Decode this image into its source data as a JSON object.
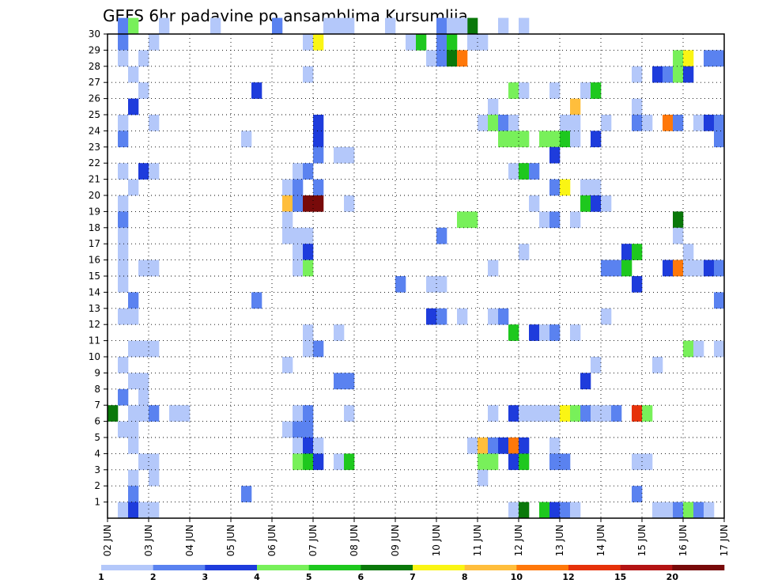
{
  "chart_data": {
    "type": "heatmap",
    "title": "GEFS 6hr padavine po ansamblima Kursumlija",
    "xlabel": "",
    "ylabel": "",
    "x_ticks": [
      "02 JUN",
      "03 JUN",
      "04 JUN",
      "05 JUN",
      "06 JUN",
      "07 JUN",
      "08 JUN",
      "09 JUN",
      "10 JUN",
      "11 JUN",
      "12 JUN",
      "13 JUN",
      "14 JUN",
      "15 JUN",
      "16 JUN",
      "17 JUN"
    ],
    "x_range_steps": [
      0,
      60
    ],
    "x_step_hours": 6,
    "y_ticks": [
      1,
      2,
      3,
      4,
      5,
      6,
      7,
      8,
      9,
      10,
      11,
      12,
      13,
      14,
      15,
      16,
      17,
      18,
      19,
      20,
      21,
      22,
      23,
      24,
      25,
      26,
      27,
      28,
      29,
      30
    ],
    "y_range": [
      0,
      30
    ],
    "grid": true,
    "colorbar": {
      "labels": [
        "1",
        "2",
        "3",
        "4",
        "5",
        "6",
        "7",
        "8",
        "10",
        "12",
        "15",
        "20"
      ],
      "colors": [
        "#b4c8fa",
        "#5a82f0",
        "#1e3cdc",
        "#78f05a",
        "#1ec81e",
        "#0a780a",
        "#faf514",
        "#ffbe3c",
        "#ff780a",
        "#e6320a",
        "#b41414",
        "#780a0a"
      ]
    },
    "cells": [
      [
        5,
        30,
        1
      ],
      [
        22,
        30,
        1
      ],
      [
        23,
        30,
        1
      ],
      [
        16,
        30,
        2
      ],
      [
        1,
        30,
        2
      ],
      [
        32,
        30,
        2
      ],
      [
        33,
        30,
        1
      ],
      [
        10,
        30,
        1
      ],
      [
        21,
        30,
        1
      ],
      [
        35,
        30,
        6
      ],
      [
        38,
        30,
        1
      ],
      [
        40,
        30,
        1
      ],
      [
        34,
        30,
        1
      ],
      [
        27,
        30,
        1
      ],
      [
        2,
        30,
        4
      ],
      [
        1,
        29,
        2
      ],
      [
        4,
        29,
        1
      ],
      [
        19,
        29,
        1
      ],
      [
        20,
        29,
        7
      ],
      [
        29,
        29,
        1
      ],
      [
        30,
        29,
        5
      ],
      [
        32,
        29,
        2
      ],
      [
        33,
        29,
        5
      ],
      [
        35,
        29,
        1
      ],
      [
        36,
        29,
        1
      ],
      [
        1,
        28,
        1
      ],
      [
        3,
        28,
        1
      ],
      [
        31,
        28,
        1
      ],
      [
        32,
        28,
        2
      ],
      [
        33,
        28,
        6
      ],
      [
        34,
        28,
        9
      ],
      [
        55,
        28,
        4
      ],
      [
        56,
        28,
        7
      ],
      [
        58,
        28,
        2
      ],
      [
        59,
        28,
        2
      ],
      [
        2,
        27,
        1
      ],
      [
        19,
        27,
        1
      ],
      [
        51,
        27,
        1
      ],
      [
        53,
        27,
        3
      ],
      [
        54,
        27,
        2
      ],
      [
        55,
        27,
        4
      ],
      [
        56,
        27,
        3
      ],
      [
        3,
        26,
        1
      ],
      [
        14,
        26,
        3
      ],
      [
        39,
        26,
        4
      ],
      [
        40,
        26,
        1
      ],
      [
        43,
        26,
        1
      ],
      [
        46,
        26,
        1
      ],
      [
        47,
        26,
        5
      ],
      [
        2,
        25,
        3
      ],
      [
        37,
        25,
        1
      ],
      [
        45,
        25,
        8
      ],
      [
        51,
        25,
        1
      ],
      [
        1,
        24,
        1
      ],
      [
        4,
        24,
        1
      ],
      [
        20,
        24,
        3
      ],
      [
        36,
        24,
        1
      ],
      [
        37,
        24,
        4
      ],
      [
        38,
        24,
        2
      ],
      [
        39,
        24,
        1
      ],
      [
        44,
        24,
        1
      ],
      [
        45,
        24,
        1
      ],
      [
        48,
        24,
        1
      ],
      [
        51,
        24,
        2
      ],
      [
        52,
        24,
        1
      ],
      [
        54,
        24,
        9
      ],
      [
        55,
        24,
        2
      ],
      [
        57,
        24,
        1
      ],
      [
        58,
        24,
        3
      ],
      [
        59,
        24,
        2
      ],
      [
        1,
        23,
        2
      ],
      [
        13,
        23,
        1
      ],
      [
        20,
        23,
        3
      ],
      [
        38,
        23,
        4
      ],
      [
        39,
        23,
        4
      ],
      [
        40,
        23,
        4
      ],
      [
        42,
        23,
        4
      ],
      [
        43,
        23,
        4
      ],
      [
        44,
        23,
        5
      ],
      [
        45,
        23,
        1
      ],
      [
        47,
        23,
        3
      ],
      [
        59,
        23,
        2
      ],
      [
        20,
        22,
        2
      ],
      [
        22,
        22,
        1
      ],
      [
        23,
        22,
        1
      ],
      [
        43,
        22,
        3
      ],
      [
        1,
        21,
        1
      ],
      [
        3,
        21,
        3
      ],
      [
        4,
        21,
        1
      ],
      [
        18,
        21,
        1
      ],
      [
        19,
        21,
        2
      ],
      [
        39,
        21,
        1
      ],
      [
        40,
        21,
        5
      ],
      [
        41,
        21,
        2
      ],
      [
        2,
        20,
        1
      ],
      [
        17,
        20,
        1
      ],
      [
        18,
        20,
        2
      ],
      [
        20,
        20,
        2
      ],
      [
        43,
        20,
        2
      ],
      [
        44,
        20,
        7
      ],
      [
        46,
        20,
        1
      ],
      [
        47,
        20,
        1
      ],
      [
        1,
        19,
        1
      ],
      [
        17,
        19,
        8
      ],
      [
        18,
        19,
        2
      ],
      [
        19,
        19,
        12
      ],
      [
        20,
        19,
        12
      ],
      [
        23,
        19,
        1
      ],
      [
        41,
        19,
        1
      ],
      [
        46,
        19,
        5
      ],
      [
        47,
        19,
        3
      ],
      [
        48,
        19,
        1
      ],
      [
        1,
        18,
        2
      ],
      [
        17,
        18,
        1
      ],
      [
        34,
        18,
        4
      ],
      [
        35,
        18,
        4
      ],
      [
        42,
        18,
        1
      ],
      [
        43,
        18,
        2
      ],
      [
        45,
        18,
        1
      ],
      [
        55,
        18,
        6
      ],
      [
        1,
        17,
        1
      ],
      [
        17,
        17,
        1
      ],
      [
        18,
        17,
        1
      ],
      [
        19,
        17,
        1
      ],
      [
        32,
        17,
        2
      ],
      [
        55,
        17,
        1
      ],
      [
        1,
        16,
        1
      ],
      [
        18,
        16,
        1
      ],
      [
        19,
        16,
        3
      ],
      [
        40,
        16,
        1
      ],
      [
        50,
        16,
        3
      ],
      [
        51,
        16,
        5
      ],
      [
        56,
        16,
        1
      ],
      [
        1,
        15,
        1
      ],
      [
        3,
        15,
        1
      ],
      [
        4,
        15,
        1
      ],
      [
        18,
        15,
        1
      ],
      [
        19,
        15,
        4
      ],
      [
        37,
        15,
        1
      ],
      [
        48,
        15,
        2
      ],
      [
        49,
        15,
        2
      ],
      [
        50,
        15,
        5
      ],
      [
        54,
        15,
        3
      ],
      [
        55,
        15,
        9
      ],
      [
        56,
        15,
        1
      ],
      [
        57,
        15,
        1
      ],
      [
        58,
        15,
        3
      ],
      [
        59,
        15,
        2
      ],
      [
        1,
        14,
        1
      ],
      [
        28,
        14,
        2
      ],
      [
        31,
        14,
        1
      ],
      [
        32,
        14,
        1
      ],
      [
        51,
        14,
        3
      ],
      [
        2,
        13,
        2
      ],
      [
        14,
        13,
        2
      ],
      [
        59,
        13,
        2
      ],
      [
        1,
        12,
        1
      ],
      [
        2,
        12,
        1
      ],
      [
        31,
        12,
        3
      ],
      [
        32,
        12,
        2
      ],
      [
        34,
        12,
        1
      ],
      [
        37,
        12,
        1
      ],
      [
        38,
        12,
        2
      ],
      [
        48,
        12,
        1
      ],
      [
        19,
        11,
        1
      ],
      [
        22,
        11,
        1
      ],
      [
        39,
        11,
        5
      ],
      [
        41,
        11,
        3
      ],
      [
        42,
        11,
        1
      ],
      [
        43,
        11,
        2
      ],
      [
        45,
        11,
        1
      ],
      [
        2,
        10,
        1
      ],
      [
        3,
        10,
        1
      ],
      [
        4,
        10,
        1
      ],
      [
        19,
        10,
        1
      ],
      [
        20,
        10,
        2
      ],
      [
        56,
        10,
        4
      ],
      [
        57,
        10,
        1
      ],
      [
        59,
        10,
        1
      ],
      [
        1,
        9,
        1
      ],
      [
        17,
        9,
        1
      ],
      [
        47,
        9,
        1
      ],
      [
        53,
        9,
        1
      ],
      [
        2,
        8,
        1
      ],
      [
        3,
        8,
        1
      ],
      [
        22,
        8,
        2
      ],
      [
        23,
        8,
        2
      ],
      [
        46,
        8,
        3
      ],
      [
        1,
        7,
        2
      ],
      [
        3,
        7,
        1
      ],
      [
        0,
        6,
        6
      ],
      [
        2,
        6,
        1
      ],
      [
        3,
        6,
        1
      ],
      [
        4,
        6,
        2
      ],
      [
        6,
        6,
        1
      ],
      [
        7,
        6,
        1
      ],
      [
        18,
        6,
        1
      ],
      [
        19,
        6,
        2
      ],
      [
        23,
        6,
        1
      ],
      [
        37,
        6,
        1
      ],
      [
        39,
        6,
        3
      ],
      [
        40,
        6,
        1
      ],
      [
        41,
        6,
        1
      ],
      [
        42,
        6,
        1
      ],
      [
        43,
        6,
        1
      ],
      [
        44,
        6,
        7
      ],
      [
        45,
        6,
        4
      ],
      [
        46,
        6,
        2
      ],
      [
        47,
        6,
        1
      ],
      [
        48,
        6,
        1
      ],
      [
        49,
        6,
        2
      ],
      [
        51,
        6,
        10
      ],
      [
        52,
        6,
        4
      ],
      [
        1,
        5,
        1
      ],
      [
        2,
        5,
        1
      ],
      [
        17,
        5,
        1
      ],
      [
        18,
        5,
        2
      ],
      [
        19,
        5,
        2
      ],
      [
        2,
        4,
        1
      ],
      [
        18,
        4,
        1
      ],
      [
        19,
        4,
        3
      ],
      [
        20,
        4,
        1
      ],
      [
        35,
        4,
        1
      ],
      [
        36,
        4,
        8
      ],
      [
        37,
        4,
        2
      ],
      [
        38,
        4,
        3
      ],
      [
        39,
        4,
        9
      ],
      [
        40,
        4,
        3
      ],
      [
        43,
        4,
        1
      ],
      [
        3,
        3,
        1
      ],
      [
        4,
        3,
        1
      ],
      [
        18,
        3,
        4
      ],
      [
        19,
        3,
        5
      ],
      [
        20,
        3,
        3
      ],
      [
        22,
        3,
        1
      ],
      [
        23,
        3,
        5
      ],
      [
        36,
        3,
        4
      ],
      [
        37,
        3,
        4
      ],
      [
        39,
        3,
        3
      ],
      [
        40,
        3,
        5
      ],
      [
        43,
        3,
        2
      ],
      [
        44,
        3,
        2
      ],
      [
        51,
        3,
        1
      ],
      [
        52,
        3,
        1
      ],
      [
        2,
        2,
        1
      ],
      [
        4,
        2,
        1
      ],
      [
        36,
        2,
        1
      ],
      [
        2,
        1,
        2
      ],
      [
        13,
        1,
        2
      ],
      [
        51,
        1,
        2
      ],
      [
        1,
        0,
        1
      ],
      [
        2,
        0,
        3
      ],
      [
        3,
        0,
        1
      ],
      [
        4,
        0,
        1
      ],
      [
        39,
        0,
        1
      ],
      [
        40,
        0,
        6
      ],
      [
        42,
        0,
        5
      ],
      [
        43,
        0,
        3
      ],
      [
        44,
        0,
        2
      ],
      [
        45,
        0,
        1
      ],
      [
        53,
        0,
        1
      ],
      [
        54,
        0,
        1
      ],
      [
        55,
        0,
        2
      ],
      [
        56,
        0,
        4
      ],
      [
        57,
        0,
        2
      ],
      [
        58,
        0,
        1
      ]
    ]
  }
}
